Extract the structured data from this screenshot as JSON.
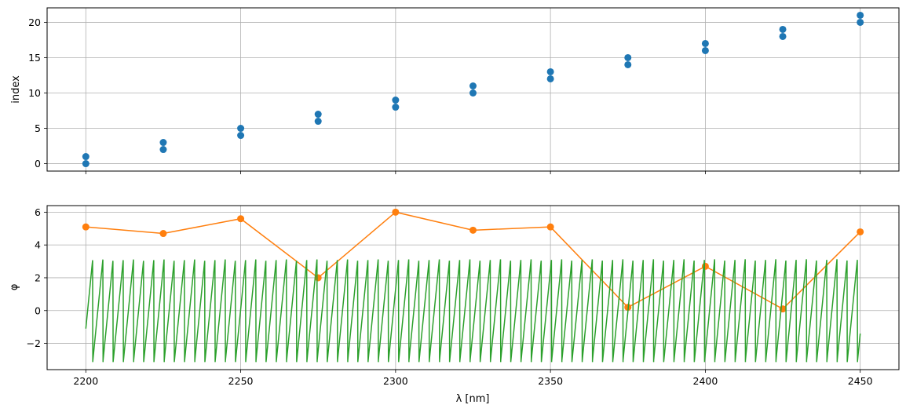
{
  "chart_data": [
    {
      "type": "scatter",
      "title": "",
      "xlabel": "",
      "ylabel": "index",
      "xlim": [
        2187.5,
        2462.5
      ],
      "ylim": [
        -1.05,
        22.05
      ],
      "grid": true,
      "x_ticks": [
        2200,
        2250,
        2300,
        2350,
        2400,
        2450
      ],
      "y_ticks": [
        0,
        5,
        10,
        15,
        20
      ],
      "y_tick_labels": [
        "0",
        "5",
        "10",
        "15",
        "20"
      ],
      "series": [
        {
          "color": "#1f77b4",
          "points": [
            [
              2200,
              0
            ],
            [
              2200,
              1
            ],
            [
              2225,
              2
            ],
            [
              2225,
              3
            ],
            [
              2250,
              4
            ],
            [
              2250,
              5
            ],
            [
              2275,
              6
            ],
            [
              2275,
              7
            ],
            [
              2300,
              8
            ],
            [
              2300,
              9
            ],
            [
              2325,
              10
            ],
            [
              2325,
              11
            ],
            [
              2350,
              12
            ],
            [
              2350,
              13
            ],
            [
              2375,
              14
            ],
            [
              2375,
              15
            ],
            [
              2400,
              16
            ],
            [
              2400,
              17
            ],
            [
              2425,
              18
            ],
            [
              2425,
              19
            ],
            [
              2450,
              20
            ],
            [
              2450,
              21
            ]
          ]
        }
      ]
    },
    {
      "type": "line",
      "title": "",
      "xlabel": "λ [nm]",
      "ylabel": "φ",
      "xlim": [
        2187.5,
        2462.5
      ],
      "ylim": [
        -3.6,
        6.4
      ],
      "grid": true,
      "x_ticks": [
        2200,
        2250,
        2300,
        2350,
        2400,
        2450
      ],
      "x_tick_labels": [
        "2200",
        "2250",
        "2300",
        "2350",
        "2400",
        "2450"
      ],
      "y_ticks": [
        -2,
        0,
        2,
        4,
        6
      ],
      "y_tick_labels": [
        "−2",
        "0",
        "2",
        "4",
        "6"
      ],
      "series": [
        {
          "style": "line-with-markers",
          "color": "#ff7f0e",
          "x": [
            2200,
            2225,
            2250,
            2275,
            2300,
            2325,
            2350,
            2375,
            2400,
            2425,
            2450
          ],
          "y": [
            5.1,
            4.7,
            5.6,
            2.0,
            6.0,
            4.9,
            5.1,
            0.2,
            2.7,
            0.1,
            4.8
          ]
        },
        {
          "style": "wrapped-phase-sawtooth",
          "color": "#2ca02c",
          "x_start": 2200,
          "x_end": 2450,
          "y_start": -1.1,
          "y_end": -1.4,
          "wrap_min": -3.14,
          "wrap_max": 3.14,
          "cycles": 76
        }
      ]
    }
  ]
}
